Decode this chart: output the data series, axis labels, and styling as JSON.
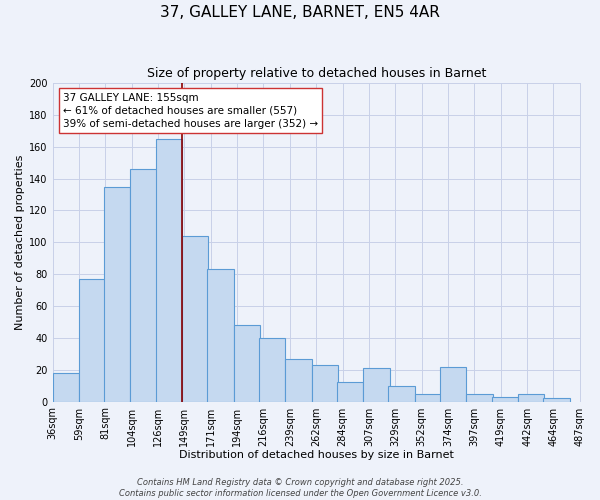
{
  "title": "37, GALLEY LANE, BARNET, EN5 4AR",
  "subtitle": "Size of property relative to detached houses in Barnet",
  "xlabel": "Distribution of detached houses by size in Barnet",
  "ylabel": "Number of detached properties",
  "bar_left_edges": [
    36,
    59,
    81,
    104,
    126,
    149,
    171,
    194,
    216,
    239,
    262,
    284,
    307,
    329,
    352,
    374,
    397,
    419,
    442,
    464
  ],
  "bar_heights": [
    18,
    77,
    135,
    146,
    165,
    104,
    83,
    48,
    40,
    27,
    23,
    12,
    21,
    10,
    5,
    22,
    5,
    3,
    5,
    2
  ],
  "bin_width": 23,
  "tick_labels": [
    "36sqm",
    "59sqm",
    "81sqm",
    "104sqm",
    "126sqm",
    "149sqm",
    "171sqm",
    "194sqm",
    "216sqm",
    "239sqm",
    "262sqm",
    "284sqm",
    "307sqm",
    "329sqm",
    "352sqm",
    "374sqm",
    "397sqm",
    "419sqm",
    "442sqm",
    "464sqm",
    "487sqm"
  ],
  "bar_color": "#c5d9f0",
  "bar_edge_color": "#5b9bd5",
  "vline_x": 149,
  "vline_color": "#8b0000",
  "ylim": [
    0,
    200
  ],
  "yticks": [
    0,
    20,
    40,
    60,
    80,
    100,
    120,
    140,
    160,
    180,
    200
  ],
  "annotation_title": "37 GALLEY LANE: 155sqm",
  "annotation_line1": "← 61% of detached houses are smaller (557)",
  "annotation_line2": "39% of semi-detached houses are larger (352) →",
  "footer_line1": "Contains HM Land Registry data © Crown copyright and database right 2025.",
  "footer_line2": "Contains public sector information licensed under the Open Government Licence v3.0.",
  "background_color": "#eef2fa",
  "grid_color": "#c8d0e8",
  "title_fontsize": 11,
  "subtitle_fontsize": 9,
  "axis_label_fontsize": 8,
  "tick_fontsize": 7,
  "annotation_fontsize": 7.5,
  "footer_fontsize": 6
}
